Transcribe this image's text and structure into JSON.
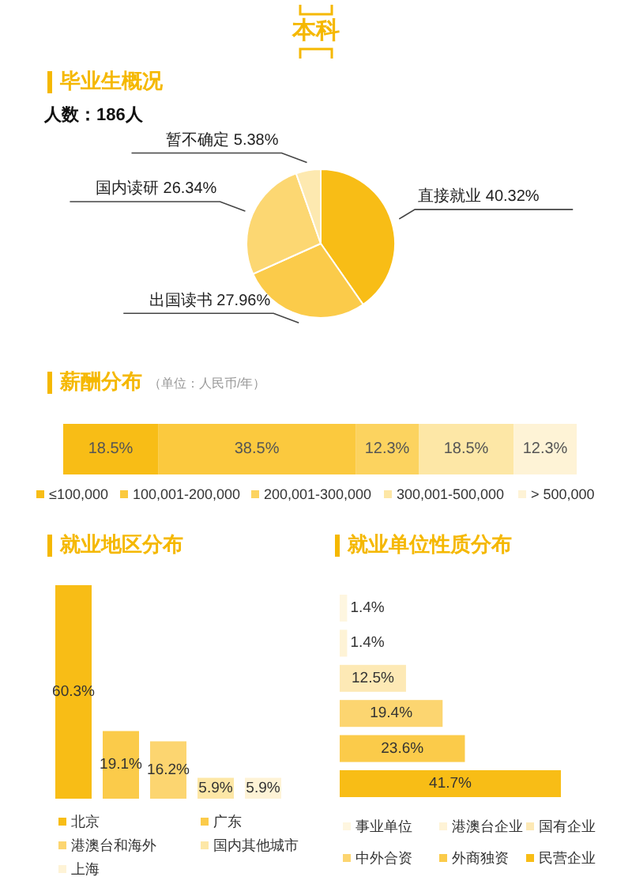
{
  "chart_data": [
    {
      "type": "pie",
      "title": "毕业生概况",
      "subtitle": "人数：186人",
      "annotations": [
        "本科"
      ],
      "legend": false,
      "categories": [
        "直接就业",
        "出国读书",
        "国内读研",
        "暂不确定"
      ],
      "values": [
        40.32,
        27.96,
        26.34,
        5.38
      ],
      "value_labels": [
        "40.32%",
        "27.96%",
        "26.34%",
        "5.38%"
      ],
      "colors": [
        "#f8bd16",
        "#fbcb4a",
        "#fcd772",
        "#fde9b0"
      ]
    },
    {
      "type": "bar",
      "title": "薪酬分布",
      "subtitle": "（单位：人民币/年）",
      "orientation": "horizontal",
      "stacked": true,
      "legend": "bottom",
      "categories": [
        null
      ],
      "series": [
        {
          "name": "≤100,000",
          "color": "#f8bd16",
          "values": [
            18.5
          ],
          "value_labels": [
            "18.5%"
          ]
        },
        {
          "name": "100,001-200,000",
          "color": "#fbc93e",
          "values": [
            38.5
          ],
          "value_labels": [
            "38.5%"
          ]
        },
        {
          "name": "200,001-300,000",
          "color": "#fcd35f",
          "values": [
            12.3
          ],
          "value_labels": [
            "12.3%"
          ]
        },
        {
          "name": "300,001-500,000",
          "color": "#fde7a6",
          "values": [
            18.5
          ],
          "value_labels": [
            "18.5%"
          ]
        },
        {
          "name": "> 500,000",
          "color": "#fef3d6",
          "values": [
            12.3
          ],
          "value_labels": [
            "12.3%"
          ]
        }
      ]
    },
    {
      "type": "bar",
      "title": "就业地区分布",
      "legend": "bottom",
      "categories": [
        null
      ],
      "series": [
        {
          "name": "北京",
          "color": "#f8bd16",
          "values": [
            60.3
          ],
          "value_labels": [
            "60.3%"
          ]
        },
        {
          "name": "广东",
          "color": "#fbcb4a",
          "values": [
            19.1
          ],
          "value_labels": [
            "19.1%"
          ]
        },
        {
          "name": "港澳台和海外",
          "color": "#fcd570",
          "values": [
            16.2
          ],
          "value_labels": [
            "16.2%"
          ]
        },
        {
          "name": "国内其他城市",
          "color": "#fde7a6",
          "values": [
            5.9
          ],
          "value_labels": [
            "5.9%"
          ]
        },
        {
          "name": "上海",
          "color": "#fef3d6",
          "values": [
            5.9
          ],
          "value_labels": [
            "5.9%"
          ]
        }
      ]
    },
    {
      "type": "bar",
      "title": "就业单位性质分布",
      "orientation": "horizontal",
      "legend": "bottom",
      "categories": [
        null
      ],
      "series": [
        {
          "name": "事业单位",
          "color": "#fef6e0",
          "values": [
            1.4
          ],
          "value_labels": [
            "1.4%"
          ]
        },
        {
          "name": "港澳台企业",
          "color": "#fef3d6",
          "values": [
            1.4
          ],
          "value_labels": [
            "1.4%"
          ]
        },
        {
          "name": "国有企业",
          "color": "#fde9b5",
          "values": [
            12.5
          ],
          "value_labels": [
            "12.5%"
          ]
        },
        {
          "name": "中外合资",
          "color": "#fcd570",
          "values": [
            19.4
          ],
          "value_labels": [
            "19.4%"
          ]
        },
        {
          "name": "外商独资",
          "color": "#fbcb4a",
          "values": [
            23.6
          ],
          "value_labels": [
            "23.6%"
          ]
        },
        {
          "name": "民营企业",
          "color": "#f8bd16",
          "values": [
            41.7
          ],
          "value_labels": [
            "41.7%"
          ]
        }
      ]
    }
  ]
}
